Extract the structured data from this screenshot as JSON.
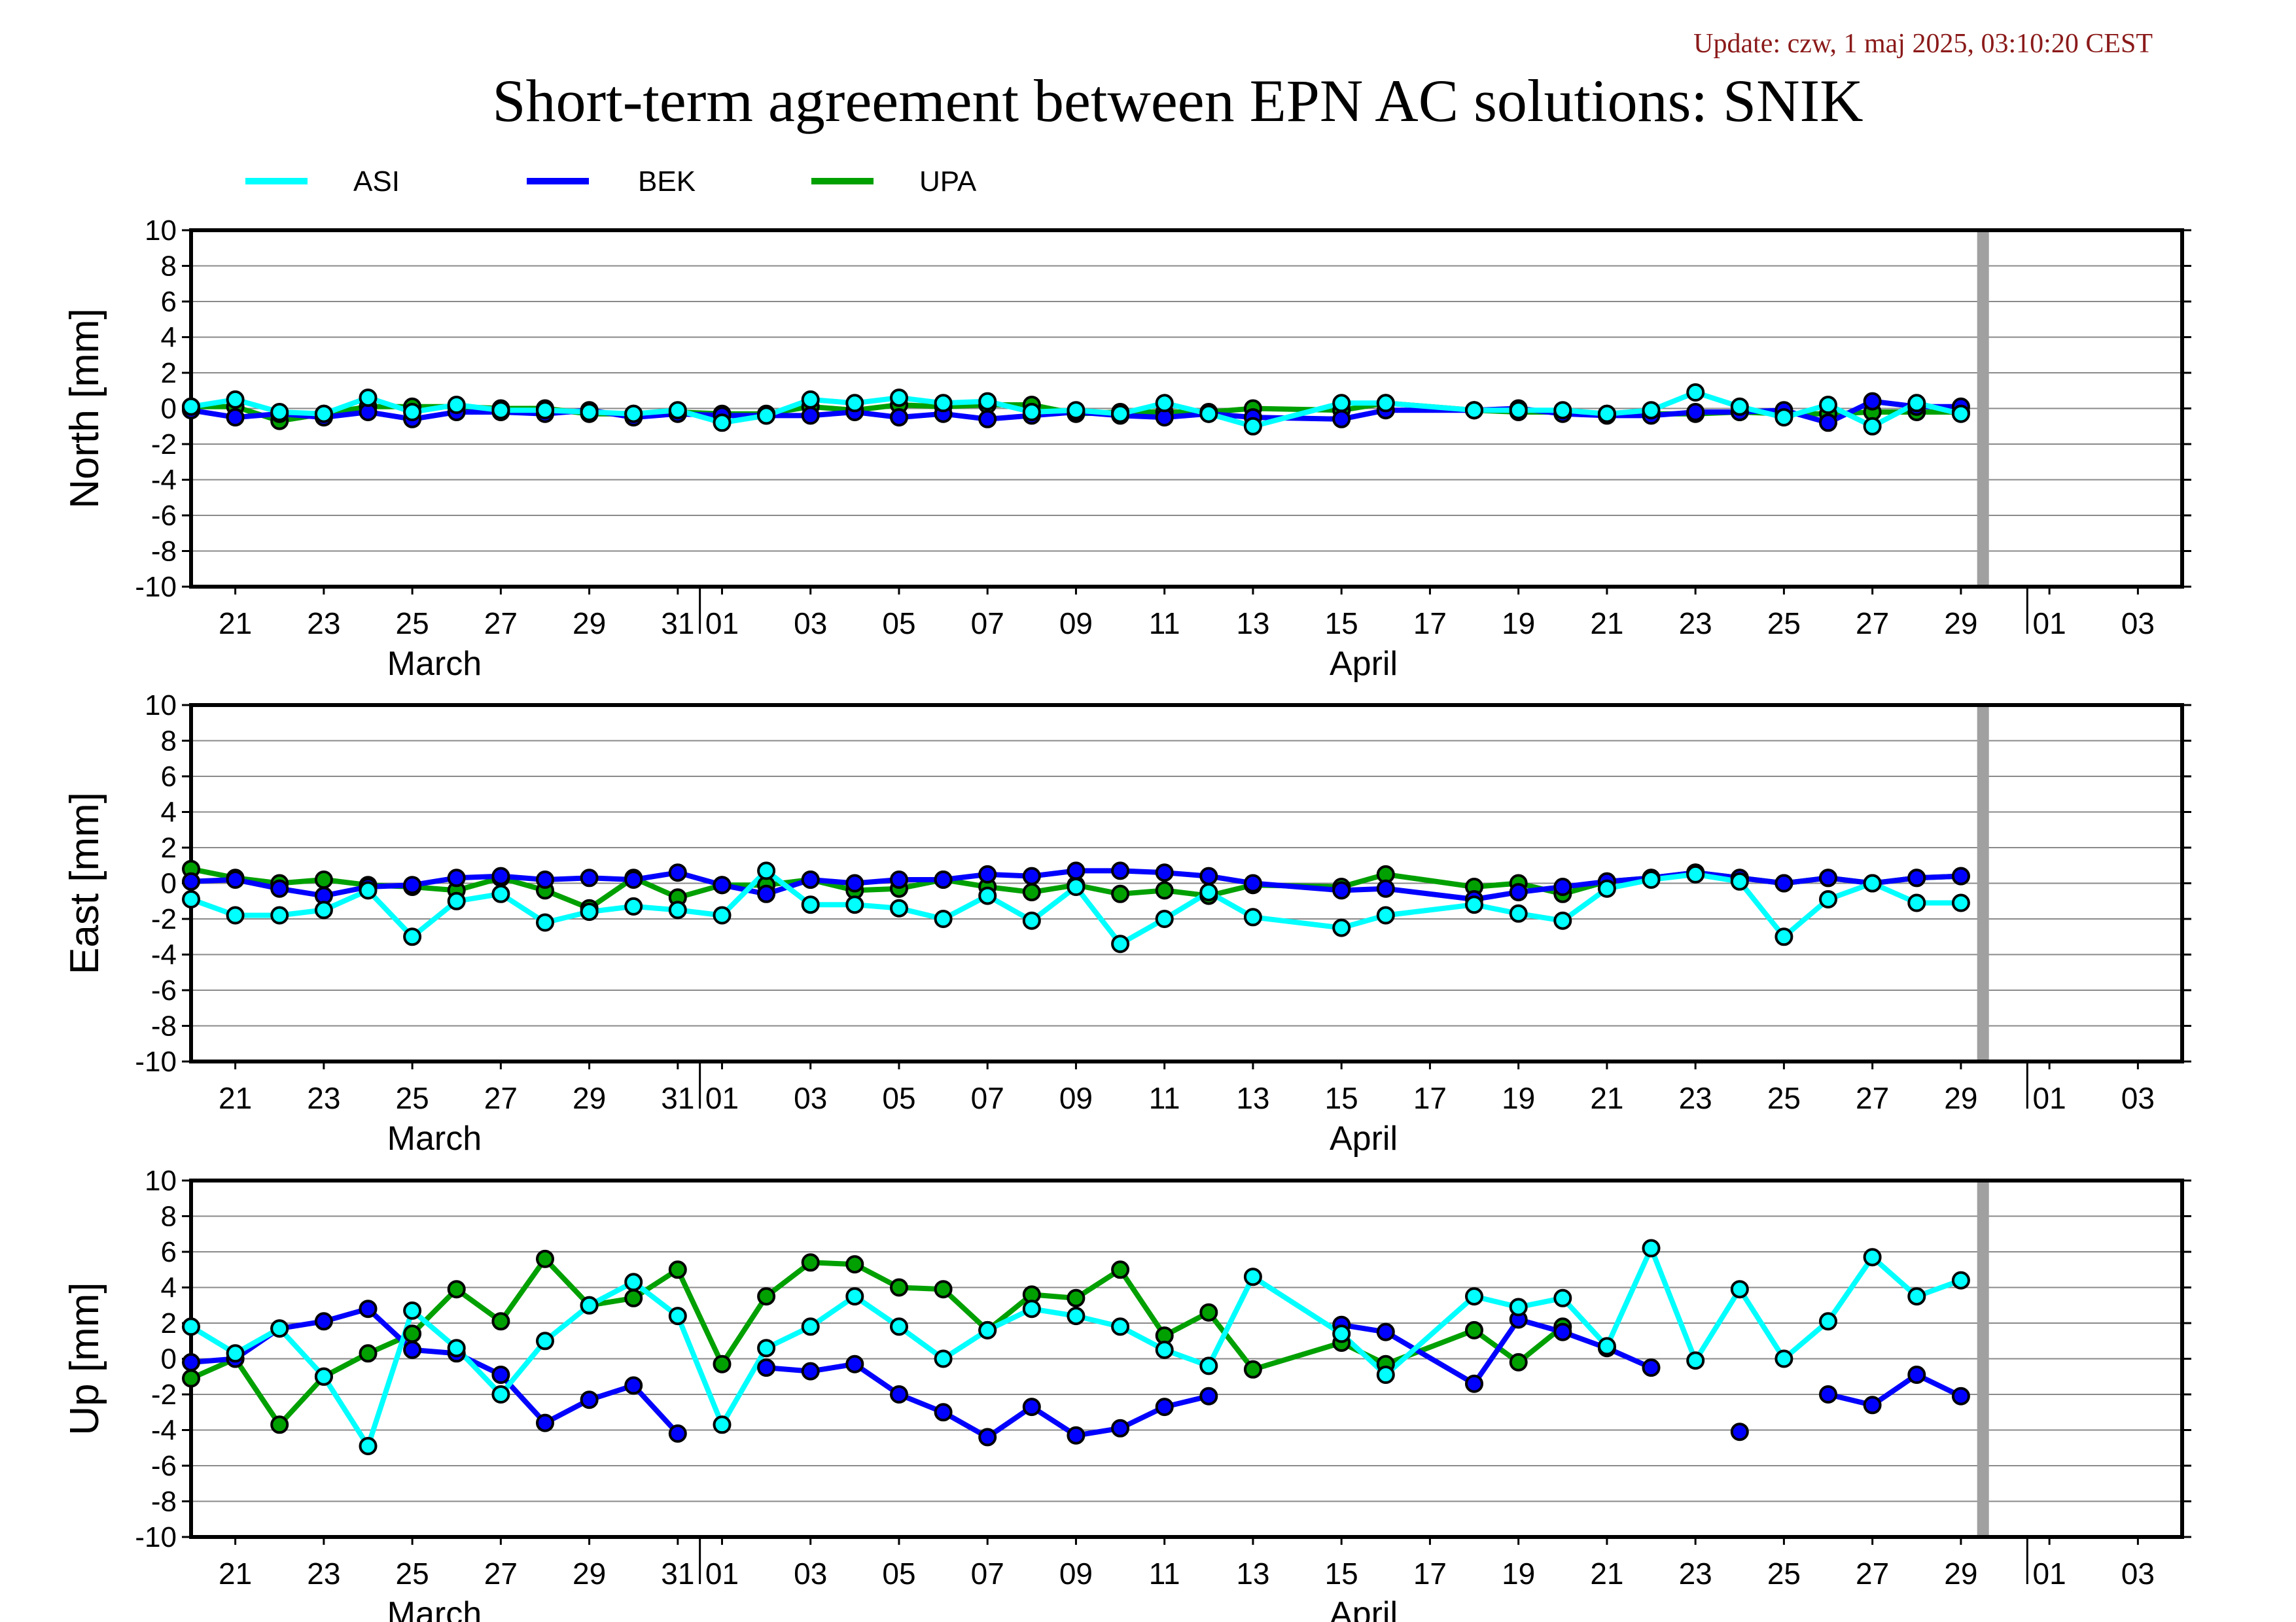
{
  "header": {
    "update": "Update: czw, 1 maj 2025, 03:10:20 CEST",
    "title": "Short-term agreement between EPN AC solutions: SNIK"
  },
  "legend": [
    {
      "label": "ASI",
      "color": "#00ffff"
    },
    {
      "label": "BEK",
      "color": "#0000ff"
    },
    {
      "label": "UPA",
      "color": "#00a000"
    }
  ],
  "colors": {
    "update": "#8b1a1a",
    "reference_bar": "#a0a0a0"
  },
  "x_axis": {
    "days": [
      {
        "t": 1,
        "label": "21"
      },
      {
        "t": 3,
        "label": "23"
      },
      {
        "t": 5,
        "label": "25"
      },
      {
        "t": 7,
        "label": "27"
      },
      {
        "t": 9,
        "label": "29"
      },
      {
        "t": 11,
        "label": "31"
      },
      {
        "t": 12,
        "label": "01"
      },
      {
        "t": 14,
        "label": "03"
      },
      {
        "t": 16,
        "label": "05"
      },
      {
        "t": 18,
        "label": "07"
      },
      {
        "t": 20,
        "label": "09"
      },
      {
        "t": 22,
        "label": "11"
      },
      {
        "t": 24,
        "label": "13"
      },
      {
        "t": 26,
        "label": "15"
      },
      {
        "t": 28,
        "label": "17"
      },
      {
        "t": 30,
        "label": "19"
      },
      {
        "t": 32,
        "label": "21"
      },
      {
        "t": 34,
        "label": "23"
      },
      {
        "t": 36,
        "label": "25"
      },
      {
        "t": 38,
        "label": "27"
      },
      {
        "t": 40,
        "label": "29"
      },
      {
        "t": 42,
        "label": "01"
      },
      {
        "t": 44,
        "label": "03"
      }
    ],
    "months": [
      {
        "t": 5.5,
        "label": "March"
      },
      {
        "t": 26.5,
        "label": "April"
      }
    ],
    "month_boundaries": [
      11.5,
      41.5
    ],
    "reference_day": 40.5,
    "range": [
      0,
      45
    ]
  },
  "chart_data": [
    {
      "type": "line",
      "ylabel": "North [mm]",
      "ylim": [
        -10,
        10
      ],
      "yticks": [
        10,
        8,
        6,
        4,
        2,
        0,
        -2,
        -4,
        -6,
        -8,
        -10
      ],
      "grid": true,
      "series": [
        {
          "name": "ASI",
          "x": [
            0,
            1,
            2,
            3,
            4,
            5,
            6,
            7,
            8,
            9,
            10,
            11,
            12,
            13,
            14,
            15,
            16,
            17,
            18,
            19,
            20,
            21,
            22,
            23,
            24,
            26,
            27,
            29,
            30,
            31,
            32,
            33,
            34,
            35,
            36,
            37,
            38,
            39,
            40
          ],
          "y": [
            0.1,
            0.5,
            -0.2,
            -0.3,
            0.6,
            -0.2,
            0.2,
            -0.1,
            -0.1,
            -0.2,
            -0.3,
            -0.1,
            -0.8,
            -0.4,
            0.5,
            0.3,
            0.6,
            0.3,
            0.4,
            -0.2,
            -0.1,
            -0.3,
            0.3,
            -0.3,
            -1.0,
            0.3,
            0.3,
            -0.1,
            -0.1,
            -0.1,
            -0.3,
            -0.1,
            0.9,
            0.1,
            -0.5,
            0.2,
            -1.0,
            0.3,
            -0.3
          ]
        },
        {
          "name": "BEK",
          "x": [
            0,
            1,
            2,
            3,
            4,
            5,
            6,
            7,
            8,
            9,
            10,
            11,
            12,
            13,
            14,
            15,
            16,
            17,
            18,
            19,
            20,
            21,
            22,
            23,
            24,
            26,
            27,
            29,
            30,
            31,
            32,
            33,
            34,
            35,
            36,
            37,
            38,
            39,
            40
          ],
          "y": [
            -0.1,
            -0.5,
            -0.3,
            -0.5,
            -0.2,
            -0.6,
            -0.2,
            -0.2,
            -0.3,
            -0.1,
            -0.5,
            -0.3,
            -0.4,
            -0.4,
            -0.4,
            -0.2,
            -0.5,
            -0.3,
            -0.6,
            -0.4,
            -0.2,
            -0.4,
            -0.5,
            -0.3,
            -0.5,
            -0.6,
            -0.1,
            -0.1,
            0.0,
            -0.3,
            -0.4,
            -0.4,
            -0.2,
            -0.2,
            -0.1,
            -0.8,
            0.4,
            0.1,
            0.1
          ]
        },
        {
          "name": "UPA",
          "x": [
            0,
            1,
            2,
            3,
            4,
            5,
            6,
            7,
            8,
            9,
            10,
            11,
            12,
            13,
            14,
            15,
            16,
            17,
            18,
            19,
            20,
            21,
            22,
            23,
            24,
            26,
            27,
            29,
            30,
            31,
            32,
            33,
            34,
            35,
            36,
            37,
            38,
            39,
            40
          ],
          "y": [
            0.1,
            0.1,
            -0.7,
            -0.3,
            0.1,
            0.1,
            0.1,
            0.0,
            0.0,
            -0.3,
            -0.3,
            -0.2,
            -0.3,
            -0.3,
            0.1,
            -0.1,
            0.2,
            0.1,
            0.2,
            0.2,
            -0.3,
            -0.2,
            -0.2,
            -0.2,
            0.0,
            -0.1,
            0.3,
            -0.1,
            -0.2,
            -0.2,
            -0.3,
            -0.3,
            -0.3,
            -0.2,
            -0.3,
            -0.3,
            -0.2,
            -0.2,
            -0.2
          ]
        }
      ]
    },
    {
      "type": "line",
      "ylabel": "East [mm]",
      "ylim": [
        -10,
        10
      ],
      "yticks": [
        10,
        8,
        6,
        4,
        2,
        0,
        -2,
        -4,
        -6,
        -8,
        -10
      ],
      "grid": true,
      "series": [
        {
          "name": "ASI",
          "x": [
            0,
            1,
            2,
            3,
            4,
            5,
            6,
            7,
            8,
            9,
            10,
            11,
            12,
            13,
            14,
            15,
            16,
            17,
            18,
            19,
            20,
            21,
            22,
            23,
            24,
            26,
            27,
            29,
            30,
            31,
            32,
            33,
            34,
            35,
            36,
            37,
            38,
            39,
            40
          ],
          "y": [
            -0.9,
            -1.8,
            -1.8,
            -1.5,
            -0.4,
            -3.0,
            -1.0,
            -0.6,
            -2.2,
            -1.6,
            -1.3,
            -1.5,
            -1.8,
            0.7,
            -1.2,
            -1.2,
            -1.4,
            -2.0,
            -0.7,
            -2.1,
            -0.2,
            -3.4,
            -2.0,
            -0.5,
            -1.9,
            -2.5,
            -1.8,
            -1.2,
            -1.7,
            -2.1,
            -0.3,
            0.2,
            0.5,
            0.1,
            -3.0,
            -0.9,
            0.0,
            -1.1,
            -1.1
          ]
        },
        {
          "name": "BEK",
          "x": [
            0,
            1,
            2,
            3,
            4,
            5,
            6,
            7,
            8,
            9,
            10,
            11,
            12,
            13,
            14,
            15,
            16,
            17,
            18,
            19,
            20,
            21,
            22,
            23,
            24,
            26,
            27,
            29,
            30,
            31,
            32,
            33,
            34,
            35,
            36,
            37,
            38,
            39,
            40
          ],
          "y": [
            0.1,
            0.2,
            -0.3,
            -0.7,
            -0.2,
            -0.1,
            0.3,
            0.4,
            0.2,
            0.3,
            0.2,
            0.6,
            -0.1,
            -0.6,
            0.2,
            0.0,
            0.2,
            0.2,
            0.5,
            0.4,
            0.7,
            0.7,
            0.6,
            0.4,
            0.0,
            -0.4,
            -0.3,
            -0.9,
            -0.5,
            -0.2,
            0.1,
            0.3,
            0.6,
            0.3,
            0.0,
            0.3,
            0.0,
            0.3,
            0.4
          ]
        },
        {
          "name": "UPA",
          "x": [
            0,
            1,
            2,
            3,
            4,
            5,
            6,
            7,
            8,
            9,
            10,
            11,
            12,
            13,
            14,
            15,
            16,
            17,
            18,
            19,
            20,
            21,
            22,
            23,
            24,
            26,
            27,
            29,
            30,
            31,
            32,
            33,
            34,
            35,
            36,
            37,
            38,
            39,
            40
          ],
          "y": [
            0.8,
            0.3,
            0.0,
            0.2,
            -0.1,
            -0.2,
            -0.4,
            0.3,
            -0.4,
            -1.4,
            0.3,
            -0.8,
            -0.1,
            -0.1,
            0.2,
            -0.4,
            -0.3,
            0.2,
            -0.2,
            -0.5,
            -0.1,
            -0.6,
            -0.4,
            -0.7,
            -0.1,
            -0.2,
            0.5,
            -0.2,
            0.0,
            -0.6,
            0.1,
            0.3,
            0.6,
            0.3,
            0.0,
            0.3,
            0.0,
            0.3,
            0.4
          ]
        }
      ]
    },
    {
      "type": "line",
      "ylabel": "Up [mm]",
      "ylim": [
        -10,
        10
      ],
      "yticks": [
        10,
        8,
        6,
        4,
        2,
        0,
        -2,
        -4,
        -6,
        -8,
        -10
      ],
      "grid": true,
      "series": [
        {
          "name": "ASI",
          "x": [
            0,
            1,
            2,
            3,
            4,
            5,
            6,
            7,
            8,
            9,
            10,
            11,
            12,
            13,
            14,
            15,
            16,
            17,
            18,
            19,
            20,
            21,
            22,
            23,
            24,
            26,
            27,
            29,
            30,
            31,
            32,
            33,
            34,
            35,
            36,
            37,
            38,
            39,
            40
          ],
          "y": [
            1.8,
            0.3,
            1.7,
            -1.0,
            -4.9,
            2.7,
            0.6,
            -2.0,
            1.0,
            3.0,
            4.3,
            2.4,
            -3.7,
            0.6,
            1.8,
            3.5,
            1.8,
            0.0,
            1.6,
            2.8,
            2.4,
            1.8,
            0.5,
            -0.4,
            4.6,
            1.4,
            -0.9,
            3.5,
            2.9,
            3.4,
            0.7,
            6.2,
            -0.1,
            3.9,
            0.0,
            2.1,
            5.7,
            3.5,
            4.4
          ]
        },
        {
          "name": "BEK",
          "x": [
            0,
            1,
            2,
            3,
            4,
            5,
            6,
            7,
            8,
            9,
            10,
            11,
            12,
            13,
            14,
            15,
            16,
            17,
            18,
            19,
            20,
            21,
            22,
            23,
            24,
            26,
            27,
            29,
            30,
            31,
            32,
            33,
            34,
            35,
            36,
            37,
            38,
            39,
            40
          ],
          "y": [
            -0.2,
            0.0,
            1.7,
            2.1,
            2.8,
            0.5,
            0.3,
            -0.9,
            -3.6,
            -2.3,
            -1.5,
            -4.2,
            null,
            -0.5,
            -0.7,
            -0.3,
            -2.0,
            -3.0,
            -4.4,
            -2.7,
            -4.3,
            -3.9,
            -2.7,
            -2.1,
            null,
            1.9,
            1.5,
            -1.4,
            2.2,
            1.5,
            0.6,
            -0.5,
            null,
            -4.1,
            null,
            -2.0,
            -2.6,
            -0.9,
            -2.1
          ]
        },
        {
          "name": "UPA",
          "x": [
            0,
            1,
            2,
            3,
            4,
            5,
            6,
            7,
            8,
            9,
            10,
            11,
            12,
            13,
            14,
            15,
            16,
            17,
            18,
            19,
            20,
            21,
            22,
            23,
            24,
            26,
            27,
            29,
            30,
            31,
            32,
            33,
            34,
            35,
            36,
            37,
            38,
            39,
            40
          ],
          "y": [
            -1.1,
            0.0,
            -3.7,
            -1.0,
            0.3,
            1.4,
            3.9,
            2.1,
            5.6,
            3.0,
            3.4,
            5.0,
            -0.3,
            3.5,
            5.4,
            5.3,
            4.0,
            3.9,
            1.6,
            3.6,
            3.4,
            5.0,
            1.3,
            2.6,
            -0.6,
            0.9,
            -0.3,
            1.6,
            -0.2,
            1.8,
            null,
            null,
            null,
            null,
            null,
            null,
            null,
            null,
            null
          ]
        }
      ]
    }
  ]
}
